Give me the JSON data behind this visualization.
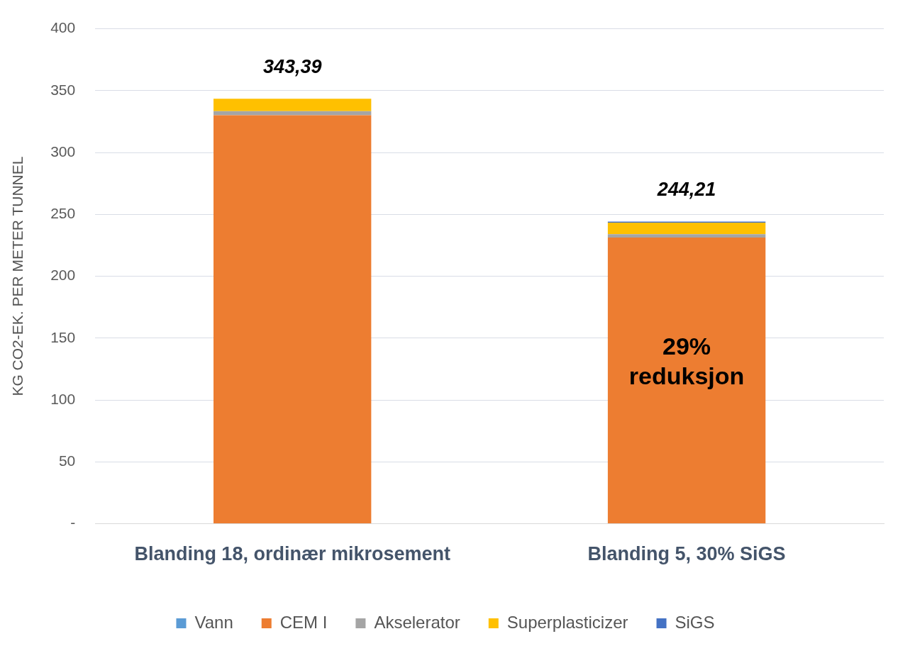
{
  "chart_data": {
    "type": "bar",
    "stacked": true,
    "ylabel": "KG CO2-EK. PER METER TUNNEL",
    "categories": [
      "Blanding 18, ordinær mikrosement",
      "Blanding 5, 30% SiGS"
    ],
    "series": [
      {
        "name": "Vann",
        "color": "#5b9bd5",
        "values": [
          0,
          0
        ]
      },
      {
        "name": "CEM I",
        "color": "#ed7d31",
        "values": [
          330.2,
          231.3
        ]
      },
      {
        "name": "Akselerator",
        "color": "#a5a5a5",
        "values": [
          3.3,
          2.7
        ]
      },
      {
        "name": "Superplasticizer",
        "color": "#ffc000",
        "values": [
          9.9,
          9.3
        ]
      },
      {
        "name": "SiGS",
        "color": "#4472c4",
        "values": [
          0,
          0.9
        ]
      }
    ],
    "totals": [
      "343,39",
      "244,21"
    ],
    "annotations": [
      "29% reduksjon"
    ],
    "ylim": [
      0,
      400
    ],
    "yticks": [
      {
        "value": 0,
        "label": "-"
      },
      50,
      100,
      150,
      200,
      250,
      300,
      350,
      400
    ],
    "grid": "y",
    "legend": "bottom"
  }
}
